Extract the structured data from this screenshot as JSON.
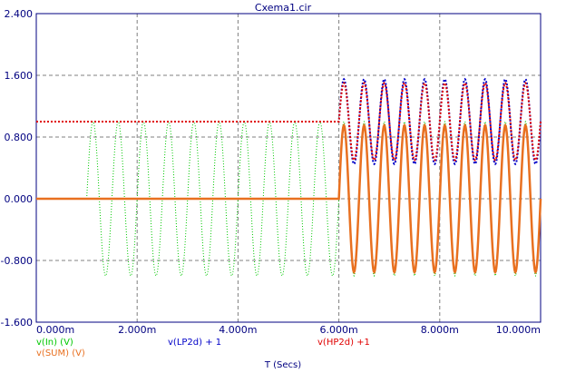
{
  "chart_data": {
    "type": "line",
    "title": "Cxema1.cir",
    "xlabel": "T (Secs)",
    "ylabel": "",
    "xlim": [
      0,
      10
    ],
    "ylim": [
      -1.6,
      2.4
    ],
    "grid": true,
    "x_ticks": [
      "0.000m",
      "2.000m",
      "4.000m",
      "6.000m",
      "8.000m",
      "10.000m"
    ],
    "x_tick_values": [
      0,
      2,
      4,
      6,
      8,
      10
    ],
    "y_ticks": [
      "2.400",
      "1.600",
      "0.800",
      "0.000",
      "-0.800",
      "-1.600"
    ],
    "y_tick_values": [
      2.4,
      1.6,
      0.8,
      0.0,
      -0.8,
      -1.6
    ],
    "series": [
      {
        "name": "v(In) (V)",
        "color": "#00c800",
        "style": "dotted",
        "description_x_unit": "ms",
        "segments": [
          {
            "x_start": 1.0,
            "x_end": 6.0,
            "shape": "sine",
            "amplitude": 1.0,
            "offset": 0.0,
            "period": 0.5
          },
          {
            "x_start": 6.0,
            "x_end": 10.0,
            "shape": "sine",
            "amplitude": 1.0,
            "offset": 0.0,
            "period": 0.4
          }
        ]
      },
      {
        "name": "v(LP2d) + 1",
        "color": "#0000c8",
        "style": "dotted",
        "segments": [
          {
            "x_start": 0.0,
            "x_end": 6.0,
            "shape": "constant",
            "value": 1.0
          },
          {
            "x_start": 6.0,
            "x_end": 10.0,
            "shape": "sine",
            "amplitude": 0.55,
            "offset": 1.0,
            "period": 0.4
          }
        ]
      },
      {
        "name": "v(HP2d) +1",
        "color": "#e00000",
        "style": "dotted",
        "segments": [
          {
            "x_start": 0.0,
            "x_end": 6.0,
            "shape": "constant",
            "value": 1.0
          },
          {
            "x_start": 6.0,
            "x_end": 10.0,
            "shape": "sine",
            "amplitude": 0.5,
            "offset": 1.0,
            "period": 0.4
          }
        ]
      },
      {
        "name": "v(SUM) (V)",
        "color": "#e87020",
        "style": "solid",
        "segments": [
          {
            "x_start": 0.0,
            "x_end": 6.0,
            "shape": "constant",
            "value": 0.0
          },
          {
            "x_start": 6.0,
            "x_end": 10.0,
            "shape": "sine",
            "amplitude": 0.95,
            "offset": 0.0,
            "period": 0.4
          }
        ]
      }
    ]
  }
}
